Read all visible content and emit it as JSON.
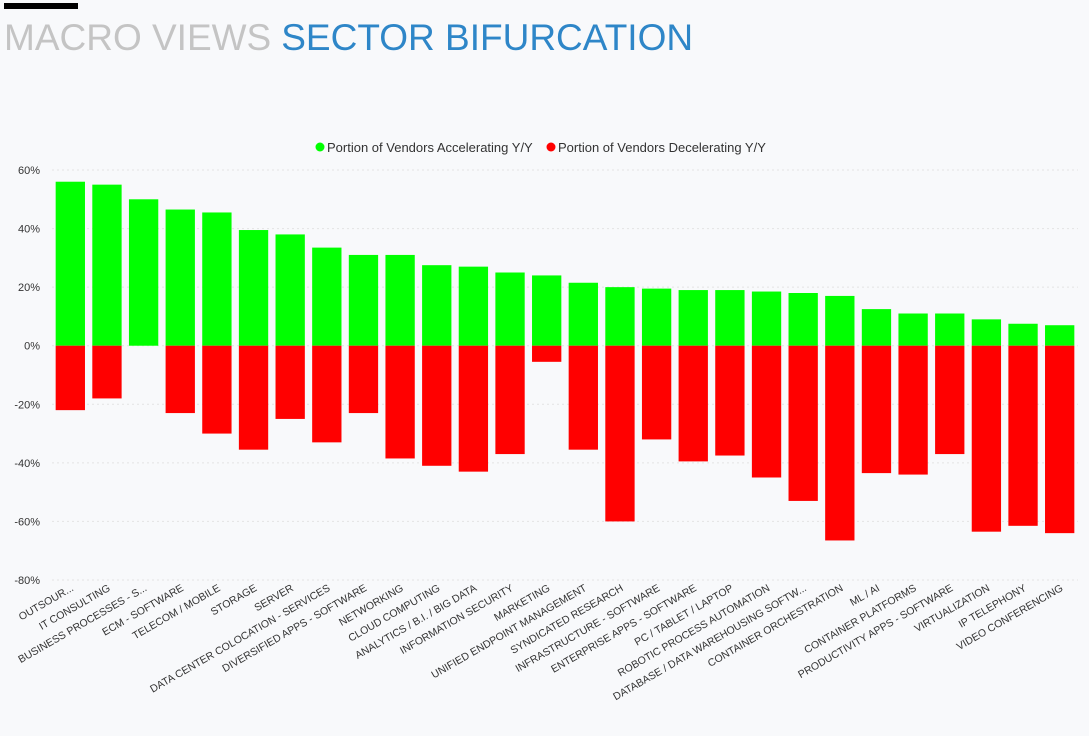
{
  "header": {
    "title_prefix": "MACRO VIEWS",
    "title_main": "SECTOR BIFURCATION"
  },
  "chart_data": {
    "type": "bar",
    "stacked": true,
    "legend_position": "top-center",
    "ylim": [
      -80,
      60
    ],
    "yticks": [
      {
        "value": 60,
        "label": "60%"
      },
      {
        "value": 40,
        "label": "40%"
      },
      {
        "value": 20,
        "label": "20%"
      },
      {
        "value": 0,
        "label": "0%"
      },
      {
        "value": -20,
        "label": "-20%"
      },
      {
        "value": -40,
        "label": "-40%"
      },
      {
        "value": -60,
        "label": "-60%"
      },
      {
        "value": -80,
        "label": "-80%"
      }
    ],
    "grid": true,
    "categories": [
      "OUTSOUR...",
      "IT CONSULTING",
      "BUSINESS PROCESSES - S...",
      "ECM - SOFTWARE",
      "TELECOM / MOBILE",
      "STORAGE",
      "SERVER",
      "DATA CENTER COLOCATION - SERVICES",
      "DIVERSIFIED APPS - SOFTWARE",
      "NETWORKING",
      "CLOUD COMPUTING",
      "ANALYTICS / B.I. / BIG DATA",
      "INFORMATION SECURITY",
      "MARKETING",
      "UNIFIED ENDPOINT MANAGEMENT",
      "SYNDICATED RESEARCH",
      "INFRASTRUCTURE - SOFTWARE",
      "ENTERPRISE APPS - SOFTWARE",
      "PC / TABLET / LAPTOP",
      "ROBOTIC PROCESS AUTOMATION",
      "DATABASE / DATA WAREHOUSING SOFTW...",
      "CONTAINER ORCHESTRATION",
      "ML / AI",
      "CONTAINER PLATFORMS",
      "PRODUCTIVITY APPS - SOFTWARE",
      "VIRTUALIZATION",
      "IP TELEPHONY",
      "VIDEO CONFERENCING"
    ],
    "series": [
      {
        "name": "Portion of Vendors Accelerating Y/Y",
        "color": "#00ff00",
        "values": [
          56,
          55,
          50,
          46.5,
          45.5,
          39.5,
          38,
          33.5,
          31,
          31,
          27.5,
          27,
          25,
          24,
          21.5,
          20,
          19.5,
          19,
          19,
          18.5,
          18,
          17,
          12.5,
          11,
          11,
          9,
          7.5,
          7
        ]
      },
      {
        "name": "Portion of Vendors Decelerating Y/Y",
        "color": "#ff0000",
        "values": [
          -22,
          -18,
          0,
          -23,
          -30,
          -35.5,
          -25,
          -33,
          -23,
          -38.5,
          -41,
          -43,
          -37,
          -5.5,
          -35.5,
          -60,
          -32,
          -39.5,
          -37.5,
          -45,
          -53,
          -66.5,
          -43.5,
          -44,
          -37,
          -63.5,
          -61.5,
          -64
        ]
      }
    ]
  }
}
